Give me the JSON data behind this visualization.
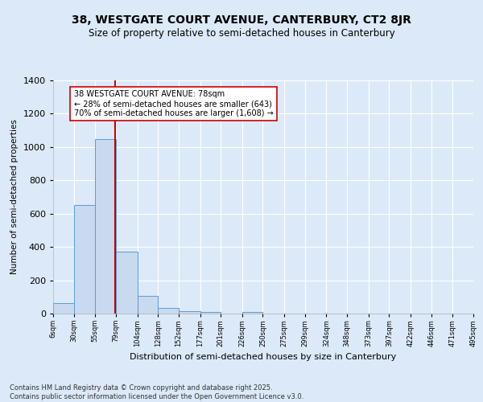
{
  "title": "38, WESTGATE COURT AVENUE, CANTERBURY, CT2 8JR",
  "subtitle": "Size of property relative to semi-detached houses in Canterbury",
  "xlabel": "Distribution of semi-detached houses by size in Canterbury",
  "ylabel": "Number of semi-detached properties",
  "footnote1": "Contains HM Land Registry data © Crown copyright and database right 2025.",
  "footnote2": "Contains public sector information licensed under the Open Government Licence v3.0.",
  "bar_edges": [
    6,
    30,
    55,
    79,
    104,
    128,
    152,
    177,
    201,
    226,
    250,
    275,
    299,
    324,
    348,
    373,
    397,
    422,
    446,
    471,
    495
  ],
  "bar_heights": [
    65,
    650,
    1050,
    370,
    105,
    35,
    15,
    10,
    0,
    10,
    0,
    0,
    0,
    0,
    0,
    0,
    0,
    0,
    0,
    0
  ],
  "bar_color": "#c8d9f0",
  "bar_edge_color": "#5b9bd5",
  "vline_x": 78,
  "vline_color": "#cc0000",
  "annotation_title": "38 WESTGATE COURT AVENUE: 78sqm",
  "annotation_line1": "← 28% of semi-detached houses are smaller (643)",
  "annotation_line2": "70% of semi-detached houses are larger (1,608) →",
  "annotation_box_color": "#ffffff",
  "annotation_box_edge": "#cc0000",
  "tick_labels": [
    "6sqm",
    "30sqm",
    "55sqm",
    "79sqm",
    "104sqm",
    "128sqm",
    "152sqm",
    "177sqm",
    "201sqm",
    "226sqm",
    "250sqm",
    "275sqm",
    "299sqm",
    "324sqm",
    "348sqm",
    "373sqm",
    "397sqm",
    "422sqm",
    "446sqm",
    "471sqm",
    "495sqm"
  ],
  "yticks": [
    0,
    200,
    400,
    600,
    800,
    1000,
    1200,
    1400
  ],
  "ylim": [
    0,
    1400
  ],
  "background_color": "#dce9f8",
  "grid_color": "#ffffff"
}
